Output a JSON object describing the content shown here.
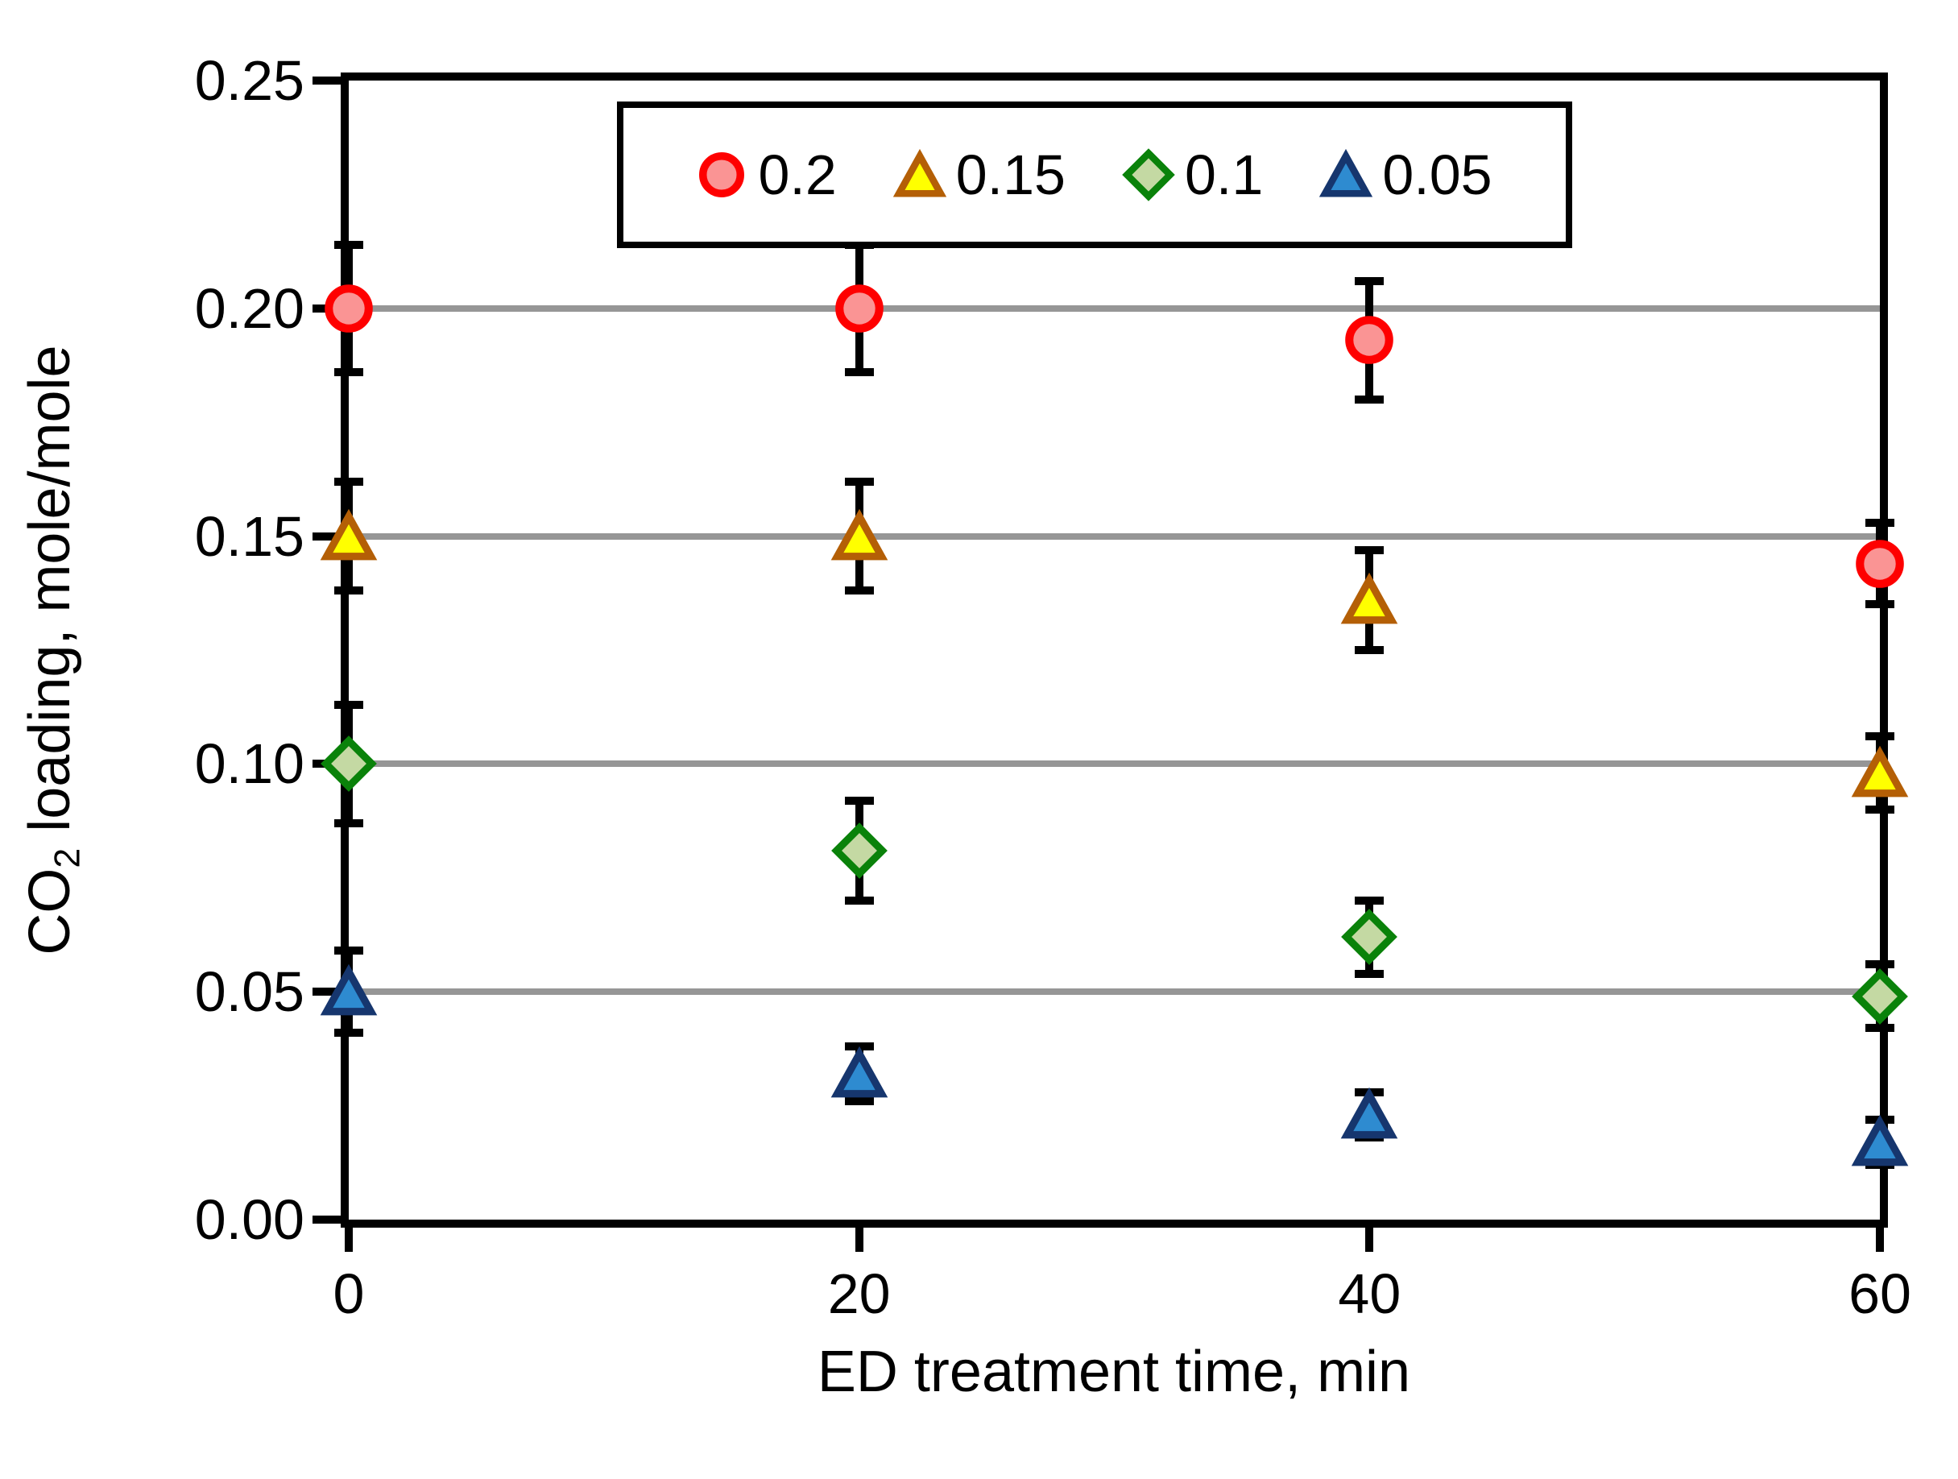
{
  "chart_data": {
    "type": "scatter",
    "title": "",
    "xlabel": "ED treatment time, min",
    "ylabel": {
      "prefix": "CO",
      "sub": "2",
      "suffix": " loading, mole/mole"
    },
    "xlim": [
      0,
      60
    ],
    "ylim": [
      0,
      0.25
    ],
    "x_tick_labels": [
      "0",
      "20",
      "40",
      "60"
    ],
    "x_tick_values": [
      0,
      20,
      40,
      60
    ],
    "y_tick_labels": [
      "0.00",
      "0.05",
      "0.10",
      "0.15",
      "0.20",
      "0.25"
    ],
    "y_tick_values": [
      0,
      0.05,
      0.1,
      0.15,
      0.2,
      0.25
    ],
    "grid": "horizontal-major-on",
    "legend_position": "top-center-inside",
    "x": [
      0,
      20,
      40,
      60
    ],
    "series": [
      {
        "name": "0.2",
        "marker": "circle",
        "fill": "#FA9494",
        "stroke": "#FE0000",
        "values": [
          0.2,
          0.2,
          0.193,
          0.144
        ],
        "errors": [
          0.014,
          0.014,
          0.013,
          0.009
        ]
      },
      {
        "name": "0.15",
        "marker": "triangle",
        "fill": "#FFFF00",
        "stroke": "#B45F06",
        "values": [
          0.15,
          0.15,
          0.136,
          0.098
        ],
        "errors": [
          0.012,
          0.012,
          0.011,
          0.008
        ]
      },
      {
        "name": "0.1",
        "marker": "diamond",
        "fill": "#C4D9A3",
        "stroke": "#0A820A",
        "values": [
          0.1,
          0.081,
          0.062,
          0.049
        ],
        "errors": [
          0.013,
          0.011,
          0.008,
          0.007
        ]
      },
      {
        "name": "0.05",
        "marker": "triangle",
        "fill": "#2E8BD0",
        "stroke": "#16366E",
        "values": [
          0.05,
          0.032,
          0.023,
          0.017
        ],
        "errors": [
          0.009,
          0.006,
          0.005,
          0.005
        ]
      }
    ],
    "colors": {
      "gridline": "#969696",
      "axis": "#000000",
      "error_bar": "#000000",
      "background": "#FFFFFF"
    }
  }
}
